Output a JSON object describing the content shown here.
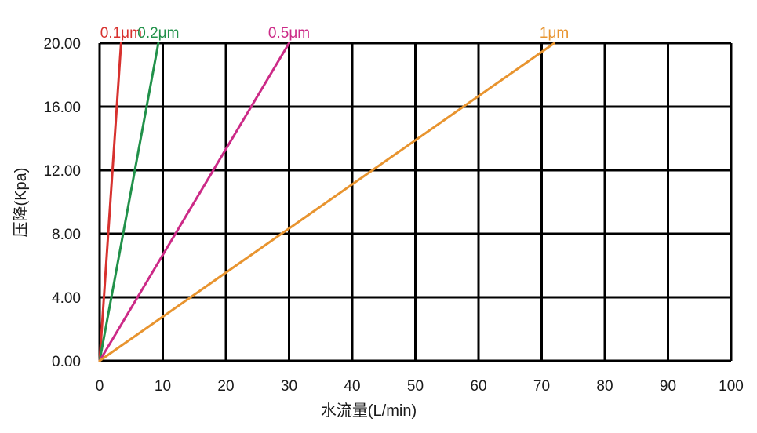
{
  "chart_data": {
    "type": "line",
    "title": "",
    "xlabel": "水流量(L/min)",
    "ylabel": "压降(Kpa)",
    "xlim": [
      0,
      100
    ],
    "ylim": [
      0,
      20
    ],
    "x_ticks": [
      "0",
      "10",
      "20",
      "30",
      "40",
      "50",
      "60",
      "70",
      "80",
      "90",
      "100"
    ],
    "y_ticks": [
      "0.00",
      "4.00",
      "8.00",
      "12.00",
      "16.00",
      "20.00"
    ],
    "grid": true,
    "legend": "labels at line ends (top)",
    "series": [
      {
        "name": "0.1μm",
        "color": "#d7312e",
        "points": [
          [
            0,
            0
          ],
          [
            3.4,
            20
          ]
        ]
      },
      {
        "name": "0.2μm",
        "color": "#21914a",
        "points": [
          [
            0,
            0
          ],
          [
            9.3,
            20
          ]
        ]
      },
      {
        "name": "0.5μm",
        "color": "#cc2a87",
        "points": [
          [
            0,
            0
          ],
          [
            30,
            20
          ]
        ]
      },
      {
        "name": "1μm",
        "color": "#e8942f",
        "points": [
          [
            0,
            0
          ],
          [
            72,
            20
          ]
        ]
      }
    ]
  }
}
